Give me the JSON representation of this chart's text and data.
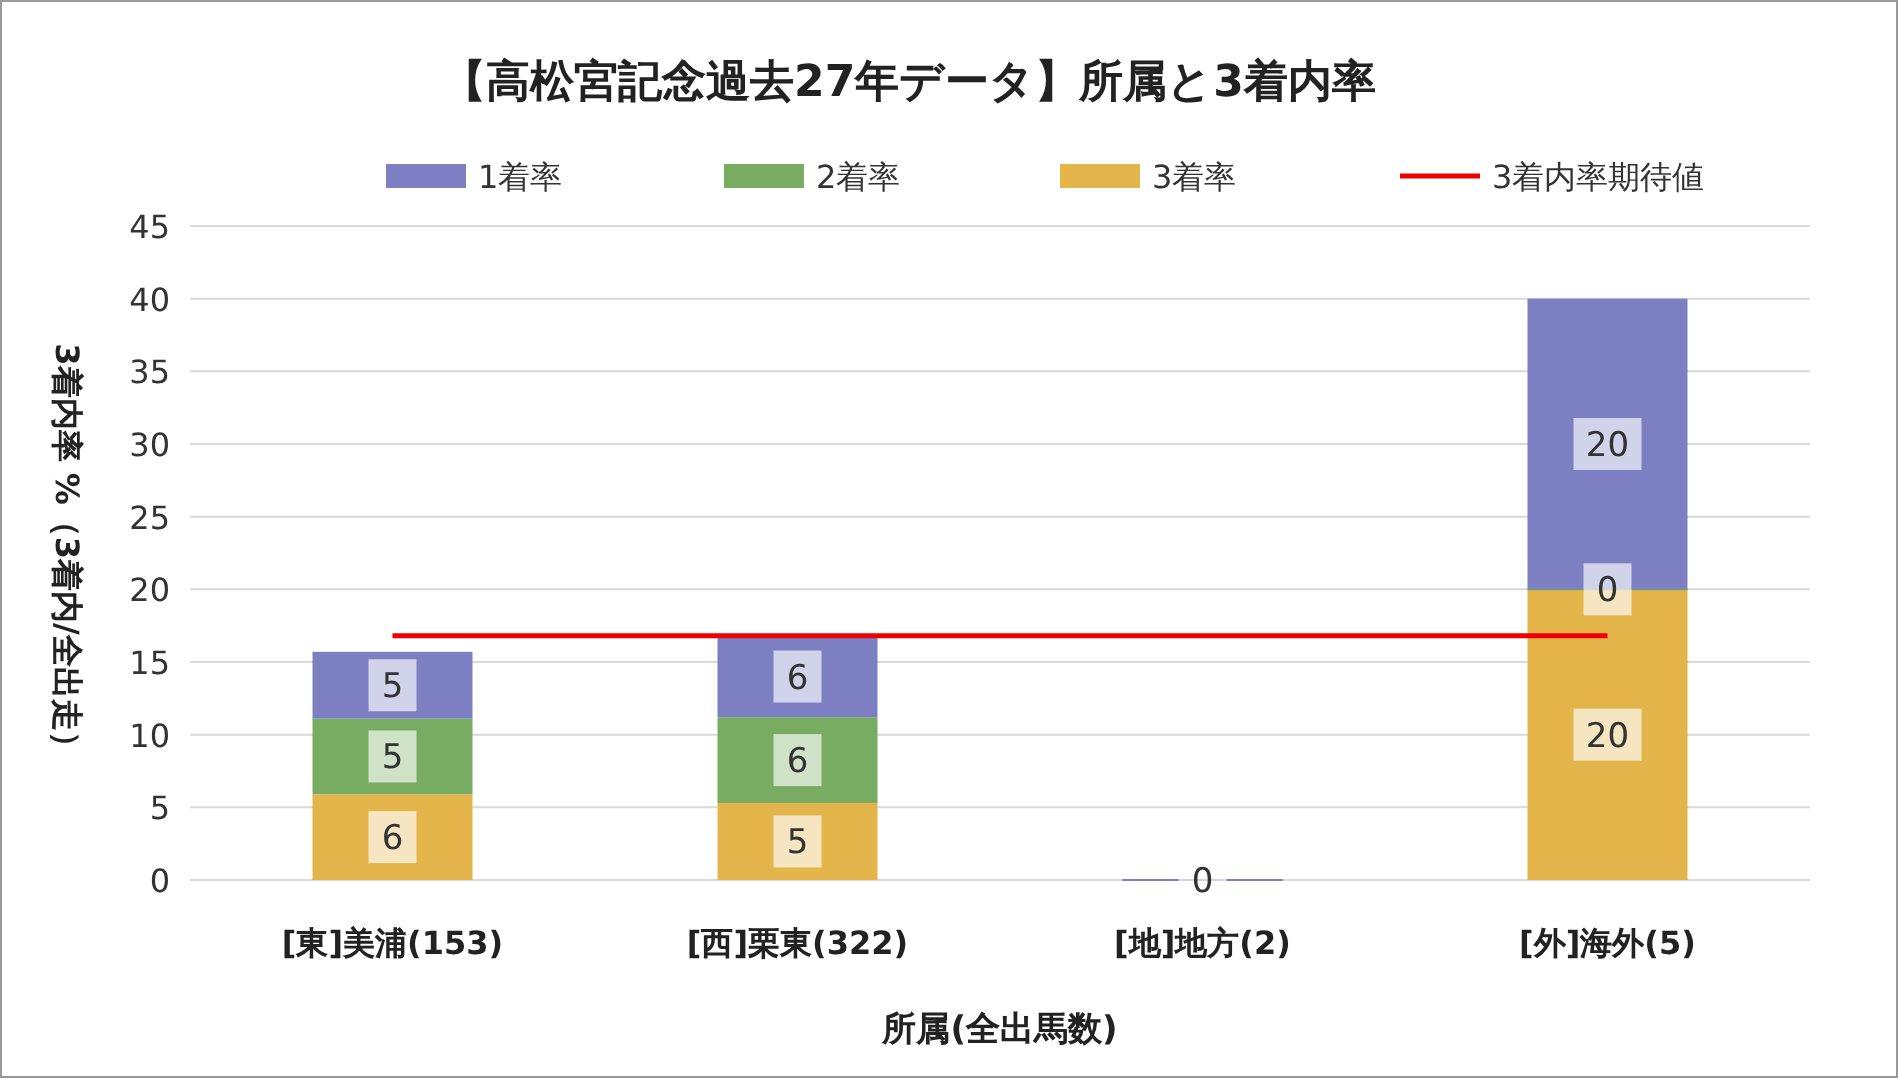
{
  "chart_data": {
    "type": "bar",
    "stacked": true,
    "title": "【高松宮記念過去27年データ】所属と3着内率",
    "xlabel": "所属(全出馬数)",
    "ylabel": "3着内率 %（3着内/全出走）",
    "categories": [
      "[東]美浦(153)",
      "[西]栗東(322)",
      "[地]地方(2)",
      "[外]海外(5)"
    ],
    "ylim": [
      0,
      45
    ],
    "yticks": [
      0,
      5,
      10,
      15,
      20,
      25,
      30,
      35,
      40,
      45
    ],
    "grid": "y",
    "legend": "top",
    "series": [
      {
        "name": "3着率",
        "color": "#e3b54a",
        "values": [
          5.9,
          5.3,
          0,
          20
        ],
        "value_labels": [
          "6",
          "5",
          "0",
          "20"
        ]
      },
      {
        "name": "2着率",
        "color": "#78ac62",
        "values": [
          5.2,
          5.9,
          0,
          0
        ],
        "value_labels": [
          "5",
          "6",
          null,
          "0"
        ]
      },
      {
        "name": "1着率",
        "color": "#7c80c2",
        "values": [
          4.6,
          5.6,
          0,
          20
        ],
        "value_labels": [
          "5",
          "6",
          null,
          "20"
        ]
      },
      {
        "name": "3着内率期待値",
        "type": "line",
        "color": "#ee0000",
        "values": [
          16.8,
          16.8,
          16.8,
          16.8
        ]
      }
    ]
  }
}
